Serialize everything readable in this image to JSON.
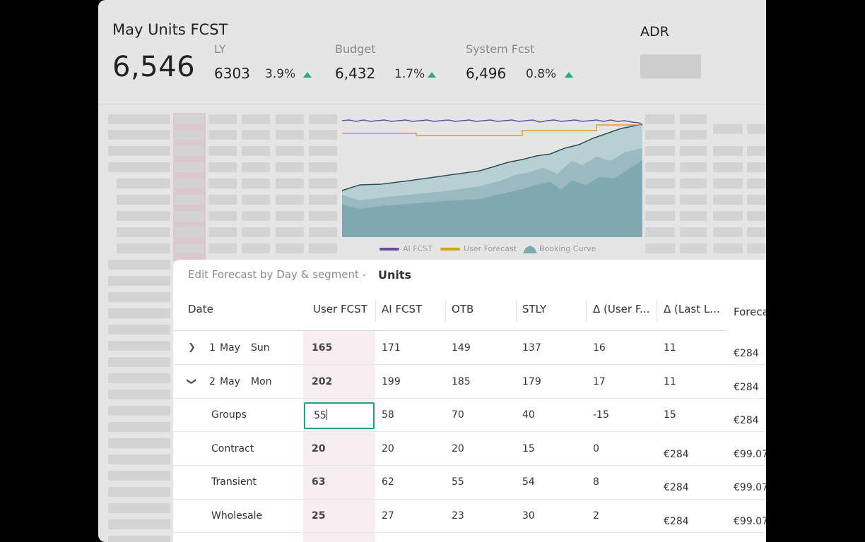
{
  "header": {
    "title": "May Units FCST",
    "total": "6,546",
    "kpis": [
      {
        "label": "LY",
        "value": "6303",
        "pct": "3.9%"
      },
      {
        "label": "Budget",
        "value": "6,432",
        "pct": "1.7%"
      },
      {
        "label": "System Fcst",
        "value": "6,496",
        "pct": "0.8%"
      }
    ],
    "adr_title": "ADR"
  },
  "chart_legend": {
    "ai": "AI FCST",
    "user": "User Forecast",
    "booking": "Booking Curve"
  },
  "colors": {
    "ai_line": "#6a4ba0",
    "user_line": "#d6a21e",
    "accent": "#2aa889",
    "area": "#7fa8b0"
  },
  "panel": {
    "title": "Edit Forecast by Day & segment -",
    "units": "Units",
    "columns": [
      "Date",
      "User FCST",
      "AI FCST",
      "OTB",
      "STLY",
      "Δ (User F...",
      "Δ (Last Lo...",
      "Foreca"
    ],
    "rows": [
      {
        "day": "1",
        "month": "May",
        "dow": "Sun",
        "user": "165",
        "ai": "171",
        "otb": "149",
        "stly": "137",
        "d_user": "16",
        "d_last": "11",
        "fc1": "€284",
        "fc2": ""
      },
      {
        "day": "2",
        "month": "May",
        "dow": "Mon",
        "user": "202",
        "ai": "199",
        "otb": "185",
        "stly": "179",
        "d_user": "17",
        "d_last": "11",
        "fc1": "€284",
        "fc2": ""
      },
      {
        "segment": "Groups",
        "user": "55",
        "ai": "58",
        "otb": "70",
        "stly": "40",
        "d_user": "-15",
        "d_last": "15",
        "fc1": "€284",
        "fc2": ""
      },
      {
        "segment": "Contract",
        "user": "20",
        "ai": "20",
        "otb": "20",
        "stly": "15",
        "d_user": "0",
        "d_last": "€284",
        "fc1": "€99.07",
        "fc2": ""
      },
      {
        "segment": "Transient",
        "user": "63",
        "ai": "62",
        "otb": "55",
        "stly": "54",
        "d_user": "8",
        "d_last": "€284",
        "fc1": "€99.07",
        "fc2": ""
      },
      {
        "segment": "Wholesale",
        "user": "25",
        "ai": "27",
        "otb": "23",
        "stly": "30",
        "d_user": "2",
        "d_last": "€284",
        "fc1": "€99.07",
        "fc2": ""
      }
    ]
  }
}
